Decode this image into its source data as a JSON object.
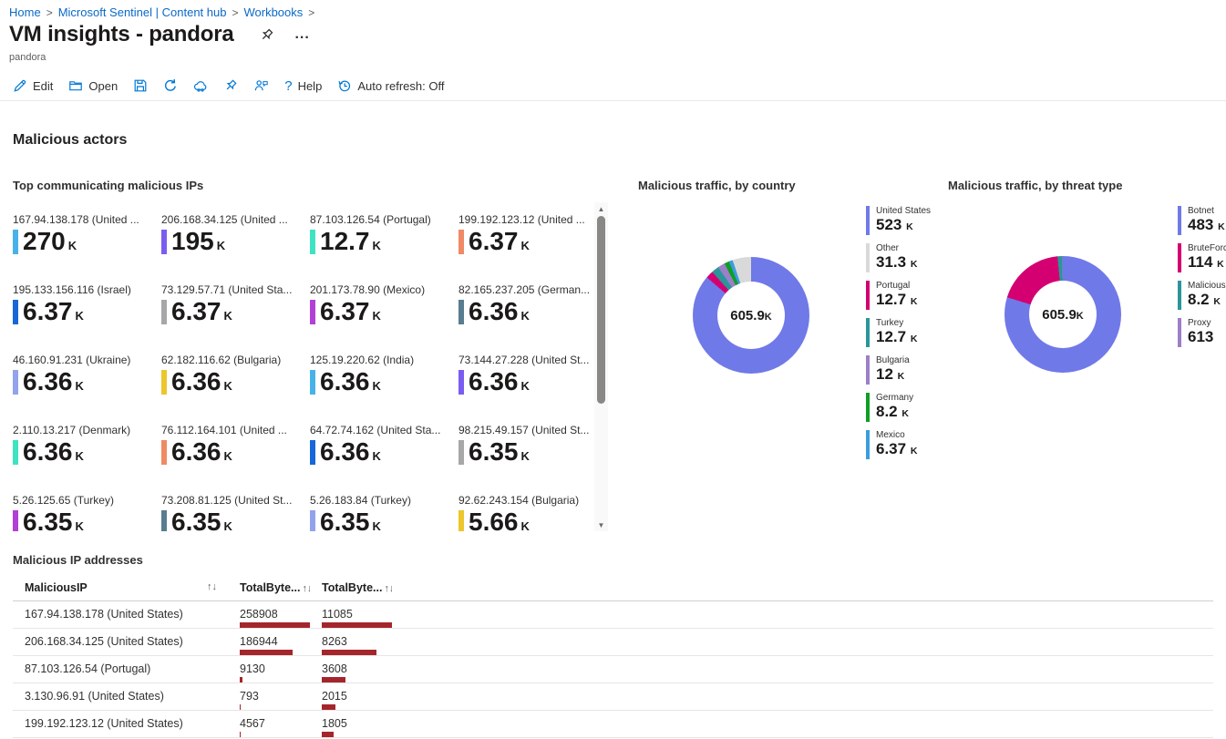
{
  "breadcrumb": {
    "separator": ">",
    "items": [
      "Home",
      "Microsoft Sentinel | Content hub",
      "Workbooks"
    ]
  },
  "header": {
    "title": "VM insights - pandora",
    "subtitle": "pandora",
    "ellipsis": "..."
  },
  "toolbar": {
    "edit": "Edit",
    "open": "Open",
    "help_glyph": "?",
    "help": "Help",
    "auto_refresh": "Auto refresh: Off"
  },
  "section": {
    "title": "Malicious actors"
  },
  "tiles_panel": {
    "title": "Top communicating malicious IPs",
    "tiles": [
      {
        "label": "167.94.138.178 (United ...",
        "value": "270",
        "suffix": "K",
        "color": "#47b2ea"
      },
      {
        "label": "206.168.34.125 (United ...",
        "value": "195",
        "suffix": "K",
        "color": "#7a5df0"
      },
      {
        "label": "87.103.126.54 (Portugal)",
        "value": "12.7",
        "suffix": "K",
        "color": "#3fe3c1"
      },
      {
        "label": "199.192.123.12 (United ...",
        "value": "6.37",
        "suffix": "K",
        "color": "#f08a64"
      },
      {
        "label": "195.133.156.116 (Israel)",
        "value": "6.37",
        "suffix": "K",
        "color": "#1767d9"
      },
      {
        "label": "73.129.57.71 (United Sta...",
        "value": "6.37",
        "suffix": "K",
        "color": "#a7a7a7"
      },
      {
        "label": "201.173.78.90 (Mexico)",
        "value": "6.37",
        "suffix": "K",
        "color": "#b240d6"
      },
      {
        "label": "82.165.237.205 (German...",
        "value": "6.36",
        "suffix": "K",
        "color": "#587d8e"
      },
      {
        "label": "46.160.91.231 (Ukraine)",
        "value": "6.36",
        "suffix": "K",
        "color": "#93a2ed"
      },
      {
        "label": "62.182.116.62 (Bulgaria)",
        "value": "6.36",
        "suffix": "K",
        "color": "#ecc62c"
      },
      {
        "label": "125.19.220.62 (India)",
        "value": "6.36",
        "suffix": "K",
        "color": "#47b2ea"
      },
      {
        "label": "73.144.27.228 (United St...",
        "value": "6.36",
        "suffix": "K",
        "color": "#7a5df0"
      },
      {
        "label": "2.110.13.217 (Denmark)",
        "value": "6.36",
        "suffix": "K",
        "color": "#3fe3c1"
      },
      {
        "label": "76.112.164.101 (United ...",
        "value": "6.36",
        "suffix": "K",
        "color": "#f08a64"
      },
      {
        "label": "64.72.74.162 (United Sta...",
        "value": "6.36",
        "suffix": "K",
        "color": "#1767d9"
      },
      {
        "label": "98.215.49.157 (United St...",
        "value": "6.35",
        "suffix": "K",
        "color": "#a7a7a7"
      },
      {
        "label": "5.26.125.65 (Turkey)",
        "value": "6.35",
        "suffix": "K",
        "color": "#b240d6"
      },
      {
        "label": "73.208.81.125 (United St...",
        "value": "6.35",
        "suffix": "K",
        "color": "#587d8e"
      },
      {
        "label": "5.26.183.84 (Turkey)",
        "value": "6.35",
        "suffix": "K",
        "color": "#93a2ed"
      },
      {
        "label": "92.62.243.154 (Bulgaria)",
        "value": "5.66",
        "suffix": "K",
        "color": "#ecc62c"
      }
    ]
  },
  "chart_data": [
    {
      "type": "donut",
      "title": "Malicious traffic, by country",
      "center_label": "605.9",
      "center_suffix": "K",
      "legend_position": "right",
      "items": [
        {
          "label": "United States",
          "display": "523",
          "suffix": "K",
          "value": 523000,
          "color": "#7079e8"
        },
        {
          "label": "Other",
          "display": "31.3",
          "suffix": "K",
          "value": 31300,
          "color": "#d9d9d9"
        },
        {
          "label": "Portugal",
          "display": "12.7",
          "suffix": "K",
          "value": 12700,
          "color": "#d40072"
        },
        {
          "label": "Turkey",
          "display": "12.7",
          "suffix": "K",
          "value": 12700,
          "color": "#2b969a"
        },
        {
          "label": "Bulgaria",
          "display": "12",
          "suffix": "K",
          "value": 12000,
          "color": "#9c7fc9"
        },
        {
          "label": "Germany",
          "display": "8.2",
          "suffix": "K",
          "value": 8200,
          "color": "#109e27"
        },
        {
          "label": "Mexico",
          "display": "6.37",
          "suffix": "K",
          "value": 6370,
          "color": "#3b9ddd"
        }
      ],
      "slice_order": [
        0,
        2,
        3,
        4,
        5,
        6,
        1
      ]
    },
    {
      "type": "donut",
      "title": "Malicious traffic, by threat type",
      "center_label": "605.9",
      "center_suffix": "K",
      "legend_position": "right",
      "items": [
        {
          "label": "Botnet",
          "display": "483",
          "suffix": "K",
          "value": 483000,
          "color": "#7079e8"
        },
        {
          "label": "BruteForce",
          "display": "114",
          "suffix": "K",
          "value": 114000,
          "color": "#d40072"
        },
        {
          "label": "MaliciousUr",
          "display": "8.2",
          "suffix": "K",
          "value": 8200,
          "color": "#2b969a"
        },
        {
          "label": "Proxy",
          "display": "613",
          "suffix": "",
          "value": 613,
          "color": "#9c7fc9"
        }
      ],
      "slice_order": [
        0,
        1,
        2,
        3
      ]
    }
  ],
  "table": {
    "title": "Malicious IP addresses",
    "sort_icon": "↑↓",
    "columns": [
      "MaliciousIP",
      "TotalByte...",
      "TotalByte..."
    ],
    "bar_color": "#a4262c",
    "bar_max_width": 80,
    "rows": [
      {
        "ip": "167.94.138.178 (United States)",
        "col2": 258908,
        "col3": 11085
      },
      {
        "ip": "206.168.34.125 (United States)",
        "col2": 186944,
        "col3": 8263
      },
      {
        "ip": "87.103.126.54 (Portugal)",
        "col2": 9130,
        "col3": 3608
      },
      {
        "ip": "3.130.96.91 (United States)",
        "col2": 793,
        "col3": 2015
      },
      {
        "ip": "199.192.123.12 (United States)",
        "col2": 4567,
        "col3": 1805
      }
    ]
  }
}
